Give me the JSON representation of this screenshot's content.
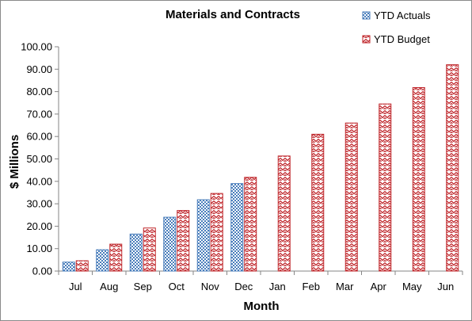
{
  "chart_data": {
    "type": "bar",
    "title": "Materials and Contracts",
    "xlabel": "Month",
    "ylabel": "$ Millions",
    "ylim": [
      0,
      100
    ],
    "y_ticks": [
      "0.00",
      "10.00",
      "20.00",
      "30.00",
      "40.00",
      "50.00",
      "60.00",
      "70.00",
      "80.00",
      "90.00",
      "100.00"
    ],
    "categories": [
      "Jul",
      "Aug",
      "Sep",
      "Oct",
      "Nov",
      "Dec",
      "Jan",
      "Feb",
      "Mar",
      "Apr",
      "May",
      "Jun"
    ],
    "series": [
      {
        "name": "YTD Actuals",
        "color": "#4a7ebb",
        "pattern": "checkerboard",
        "values": [
          4.0,
          9.5,
          16.5,
          24.0,
          31.8,
          39.0,
          null,
          null,
          null,
          null,
          null,
          null
        ]
      },
      {
        "name": "YTD Budget",
        "color": "#c0282d",
        "pattern": "zigzag",
        "values": [
          4.6,
          12.0,
          19.2,
          27.0,
          34.6,
          41.8,
          51.3,
          61.0,
          66.0,
          74.5,
          81.8,
          92.0
        ]
      }
    ],
    "legend_position": "top-right",
    "grid": false
  }
}
